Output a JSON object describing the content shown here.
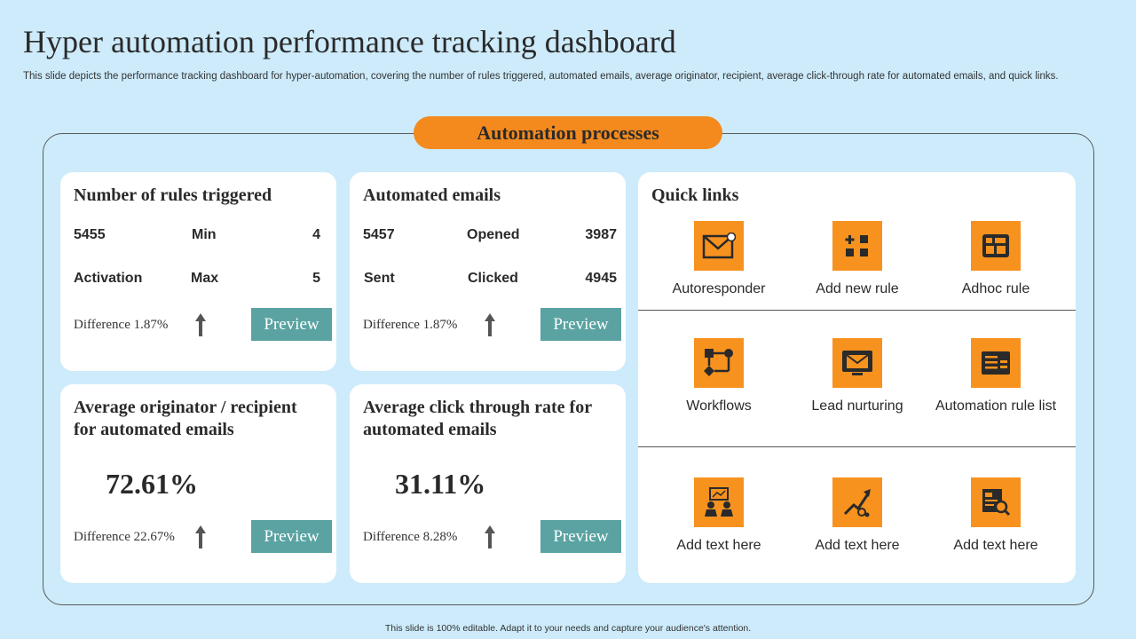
{
  "page": {
    "title": "Hyper automation performance tracking dashboard",
    "subtitle": "This slide depicts the performance tracking dashboard for hyper-automation, covering the number of rules triggered, automated emails, average originator, recipient, average click-through rate for automated emails, and quick links.",
    "section_label": "Automation processes",
    "footer": "This slide is 100% editable. Adapt it to your needs and capture your audience's attention."
  },
  "colors": {
    "background": "#cdebfb",
    "accent": "#f48a1e",
    "button": "#5aa3a2"
  },
  "rules": {
    "title": "Number of rules triggered",
    "r1c1": "5455",
    "r1c2": "Min",
    "r1c3": "4",
    "r2c1": "Activation",
    "r2c2": "Max",
    "r2c3": "5",
    "difference": "Difference 1.87%",
    "button": "Preview"
  },
  "emails": {
    "title": "Automated emails",
    "r1c1": "5457",
    "r1c2": "Opened",
    "r1c3": "3987",
    "r2c1": "Sent",
    "r2c2": "Clicked",
    "r2c3": "4945",
    "difference": "Difference 1.87%",
    "button": "Preview"
  },
  "originator": {
    "title_line1": "Average originator / recipient",
    "title_line2": "for automated emails",
    "value": "72.61%",
    "difference": "Difference 22.67%",
    "button": "Preview"
  },
  "ctr": {
    "title_line1": "Average click through rate for",
    "title_line2": "automated emails",
    "value": "31.11%",
    "difference": "Difference 8.28%",
    "button": "Preview"
  },
  "quick_links": {
    "title": "Quick links",
    "items": [
      {
        "label": "Autoresponder",
        "icon": "email-auto-icon"
      },
      {
        "label": "Add new rule",
        "icon": "add-grid-icon"
      },
      {
        "label": "Adhoc rule",
        "icon": "dashboard-icon"
      },
      {
        "label": "Workflows",
        "icon": "workflow-icon"
      },
      {
        "label": "Lead nurturing",
        "icon": "email-monitor-icon"
      },
      {
        "label": "Automation rule list",
        "icon": "rule-list-icon"
      },
      {
        "label": "Add text here",
        "icon": "team-chart-icon"
      },
      {
        "label": "Add text here",
        "icon": "growth-icon"
      },
      {
        "label": "Add text here",
        "icon": "search-document-icon"
      }
    ]
  }
}
